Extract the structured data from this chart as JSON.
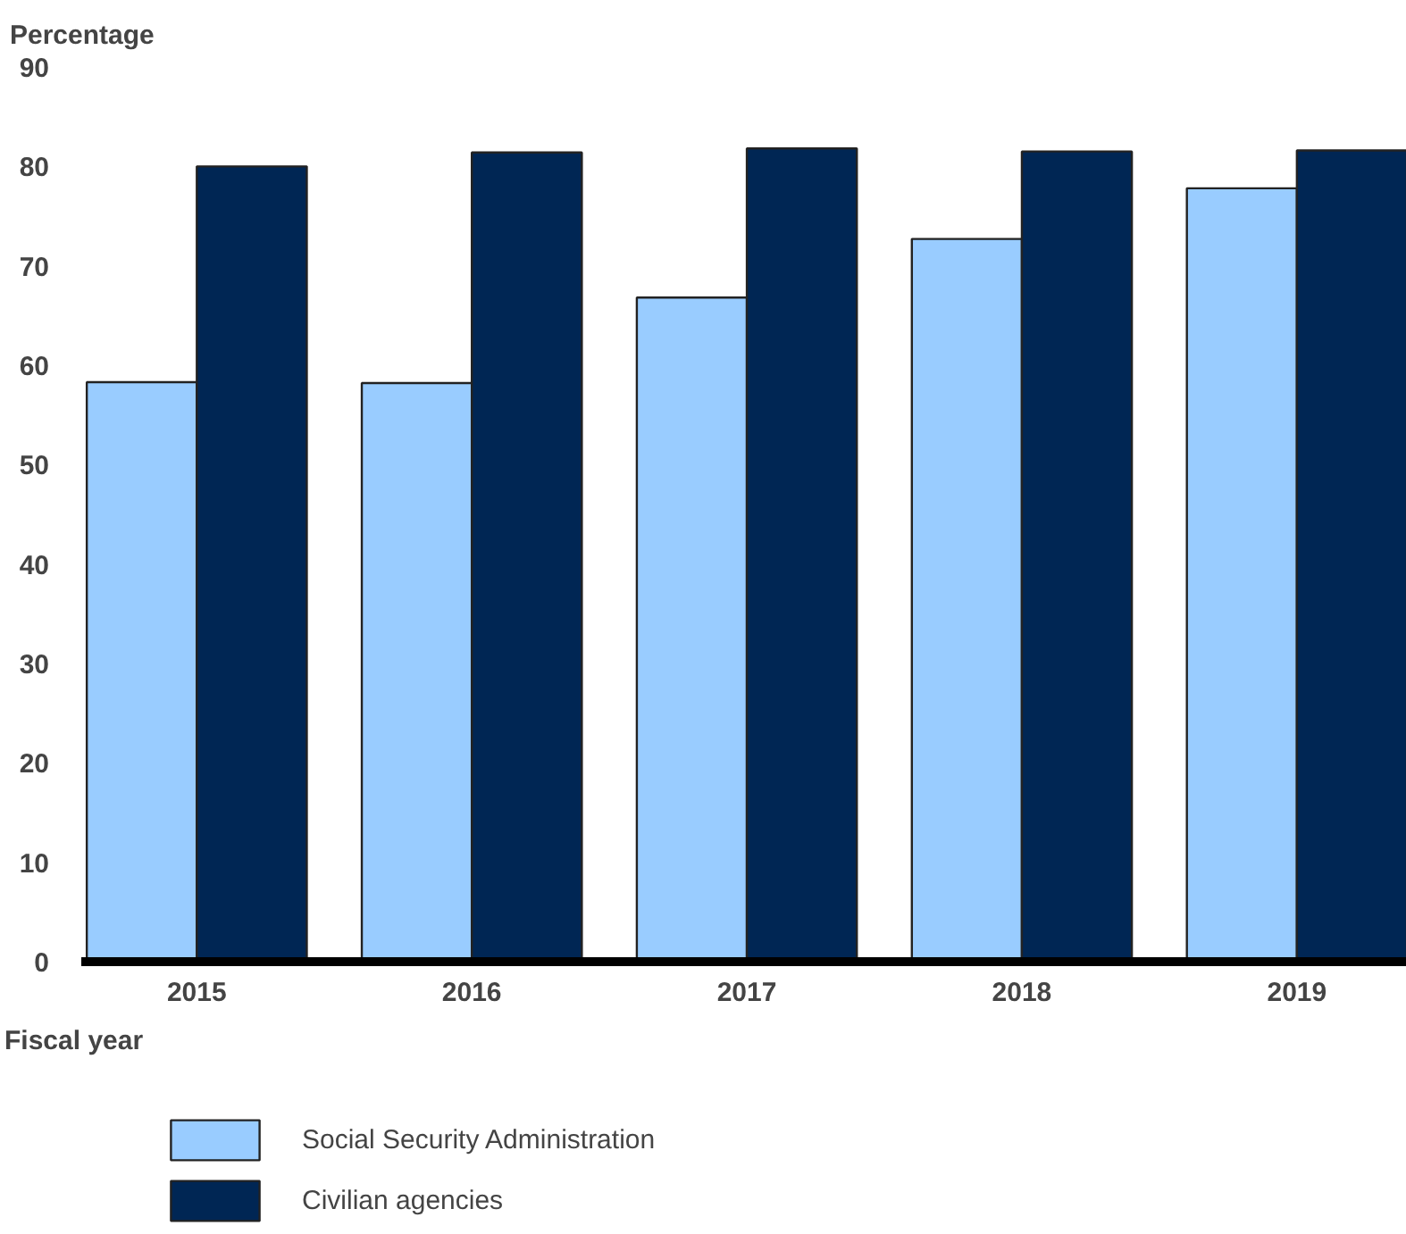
{
  "chart_data": {
    "type": "bar",
    "title": "Percentage",
    "xlabel": "Fiscal year",
    "categories": [
      "2015",
      "2016",
      "2017",
      "2018",
      "2019"
    ],
    "series": [
      {
        "name": "Social Security Administration",
        "color": "#99ccff",
        "values": [
          58.3,
          58.2,
          66.8,
          72.7,
          77.8
        ]
      },
      {
        "name": "Civilian agencies",
        "color": "#002654",
        "values": [
          80.0,
          81.4,
          81.8,
          81.5,
          81.6
        ]
      }
    ],
    "ylim": [
      0,
      90
    ],
    "yticks": [
      0,
      10,
      20,
      30,
      40,
      50,
      60,
      70,
      80,
      90
    ],
    "grid": false,
    "legend": "bottom"
  }
}
